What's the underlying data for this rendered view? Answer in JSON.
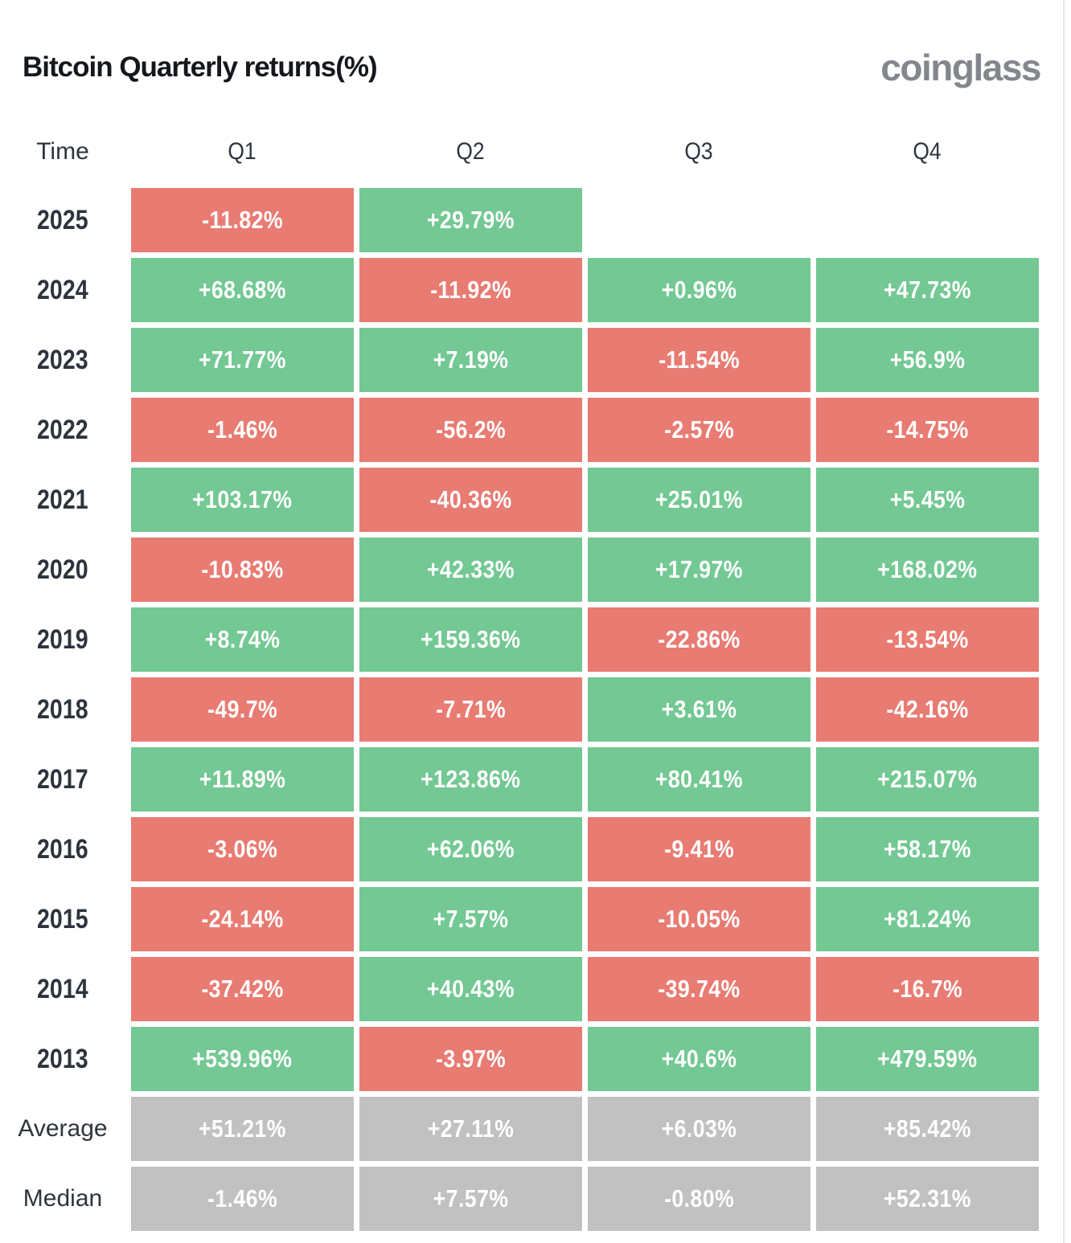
{
  "header": {
    "title": "Bitcoin Quarterly returns(%)",
    "logo": "coinglass"
  },
  "table": {
    "columns": [
      "Time",
      "Q1",
      "Q2",
      "Q3",
      "Q4"
    ],
    "rows": [
      {
        "label": "2025",
        "label_type": "year",
        "cells": [
          {
            "v": "-11.82%",
            "s": "neg"
          },
          {
            "v": "+29.79%",
            "s": "pos"
          },
          null,
          null
        ]
      },
      {
        "label": "2024",
        "label_type": "year",
        "cells": [
          {
            "v": "+68.68%",
            "s": "pos"
          },
          {
            "v": "-11.92%",
            "s": "neg"
          },
          {
            "v": "+0.96%",
            "s": "pos"
          },
          {
            "v": "+47.73%",
            "s": "pos"
          }
        ]
      },
      {
        "label": "2023",
        "label_type": "year",
        "cells": [
          {
            "v": "+71.77%",
            "s": "pos"
          },
          {
            "v": "+7.19%",
            "s": "pos"
          },
          {
            "v": "-11.54%",
            "s": "neg"
          },
          {
            "v": "+56.9%",
            "s": "pos"
          }
        ]
      },
      {
        "label": "2022",
        "label_type": "year",
        "cells": [
          {
            "v": "-1.46%",
            "s": "neg"
          },
          {
            "v": "-56.2%",
            "s": "neg"
          },
          {
            "v": "-2.57%",
            "s": "neg"
          },
          {
            "v": "-14.75%",
            "s": "neg"
          }
        ]
      },
      {
        "label": "2021",
        "label_type": "year",
        "cells": [
          {
            "v": "+103.17%",
            "s": "pos"
          },
          {
            "v": "-40.36%",
            "s": "neg"
          },
          {
            "v": "+25.01%",
            "s": "pos"
          },
          {
            "v": "+5.45%",
            "s": "pos"
          }
        ]
      },
      {
        "label": "2020",
        "label_type": "year",
        "cells": [
          {
            "v": "-10.83%",
            "s": "neg"
          },
          {
            "v": "+42.33%",
            "s": "pos"
          },
          {
            "v": "+17.97%",
            "s": "pos"
          },
          {
            "v": "+168.02%",
            "s": "pos"
          }
        ]
      },
      {
        "label": "2019",
        "label_type": "year",
        "cells": [
          {
            "v": "+8.74%",
            "s": "pos"
          },
          {
            "v": "+159.36%",
            "s": "pos"
          },
          {
            "v": "-22.86%",
            "s": "neg"
          },
          {
            "v": "-13.54%",
            "s": "neg"
          }
        ]
      },
      {
        "label": "2018",
        "label_type": "year",
        "cells": [
          {
            "v": "-49.7%",
            "s": "neg"
          },
          {
            "v": "-7.71%",
            "s": "neg"
          },
          {
            "v": "+3.61%",
            "s": "pos"
          },
          {
            "v": "-42.16%",
            "s": "neg"
          }
        ]
      },
      {
        "label": "2017",
        "label_type": "year",
        "cells": [
          {
            "v": "+11.89%",
            "s": "pos"
          },
          {
            "v": "+123.86%",
            "s": "pos"
          },
          {
            "v": "+80.41%",
            "s": "pos"
          },
          {
            "v": "+215.07%",
            "s": "pos"
          }
        ]
      },
      {
        "label": "2016",
        "label_type": "year",
        "cells": [
          {
            "v": "-3.06%",
            "s": "neg"
          },
          {
            "v": "+62.06%",
            "s": "pos"
          },
          {
            "v": "-9.41%",
            "s": "neg"
          },
          {
            "v": "+58.17%",
            "s": "pos"
          }
        ]
      },
      {
        "label": "2015",
        "label_type": "year",
        "cells": [
          {
            "v": "-24.14%",
            "s": "neg"
          },
          {
            "v": "+7.57%",
            "s": "pos"
          },
          {
            "v": "-10.05%",
            "s": "neg"
          },
          {
            "v": "+81.24%",
            "s": "pos"
          }
        ]
      },
      {
        "label": "2014",
        "label_type": "year",
        "cells": [
          {
            "v": "-37.42%",
            "s": "neg"
          },
          {
            "v": "+40.43%",
            "s": "pos"
          },
          {
            "v": "-39.74%",
            "s": "neg"
          },
          {
            "v": "-16.7%",
            "s": "neg"
          }
        ]
      },
      {
        "label": "2013",
        "label_type": "year",
        "cells": [
          {
            "v": "+539.96%",
            "s": "pos"
          },
          {
            "v": "-3.97%",
            "s": "neg"
          },
          {
            "v": "+40.6%",
            "s": "pos"
          },
          {
            "v": "+479.59%",
            "s": "pos"
          }
        ]
      },
      {
        "label": "Average",
        "label_type": "summary",
        "cells": [
          {
            "v": "+51.21%",
            "s": "avg"
          },
          {
            "v": "+27.11%",
            "s": "avg"
          },
          {
            "v": "+6.03%",
            "s": "avg"
          },
          {
            "v": "+85.42%",
            "s": "avg"
          }
        ]
      },
      {
        "label": "Median",
        "label_type": "summary",
        "cells": [
          {
            "v": "-1.46%",
            "s": "avg"
          },
          {
            "v": "+7.57%",
            "s": "avg"
          },
          {
            "v": "-0.80%",
            "s": "avg"
          },
          {
            "v": "+52.31%",
            "s": "avg"
          }
        ]
      }
    ]
  },
  "colors": {
    "positive": "#73c893",
    "negative": "#e87b72",
    "summary": "#c1c1c1",
    "label_text": "#2e343d",
    "cell_text": "#ffffff",
    "title_text": "#14171c",
    "logo_text": "#83878c"
  },
  "chart_data": {
    "type": "table",
    "title": "Bitcoin Quarterly returns(%)",
    "columns": [
      "Time",
      "Q1",
      "Q2",
      "Q3",
      "Q4"
    ],
    "unit": "percent",
    "color_coding": {
      "positive": "green",
      "negative": "red",
      "average_median": "gray"
    },
    "rows": [
      {
        "time": "2025",
        "values": [
          -11.82,
          29.79,
          null,
          null
        ]
      },
      {
        "time": "2024",
        "values": [
          68.68,
          -11.92,
          0.96,
          47.73
        ]
      },
      {
        "time": "2023",
        "values": [
          71.77,
          7.19,
          -11.54,
          56.9
        ]
      },
      {
        "time": "2022",
        "values": [
          -1.46,
          -56.2,
          -2.57,
          -14.75
        ]
      },
      {
        "time": "2021",
        "values": [
          103.17,
          -40.36,
          25.01,
          5.45
        ]
      },
      {
        "time": "2020",
        "values": [
          -10.83,
          42.33,
          17.97,
          168.02
        ]
      },
      {
        "time": "2019",
        "values": [
          8.74,
          159.36,
          -22.86,
          -13.54
        ]
      },
      {
        "time": "2018",
        "values": [
          -49.7,
          -7.71,
          3.61,
          -42.16
        ]
      },
      {
        "time": "2017",
        "values": [
          11.89,
          123.86,
          80.41,
          215.07
        ]
      },
      {
        "time": "2016",
        "values": [
          -3.06,
          62.06,
          -9.41,
          58.17
        ]
      },
      {
        "time": "2015",
        "values": [
          -24.14,
          7.57,
          -10.05,
          81.24
        ]
      },
      {
        "time": "2014",
        "values": [
          -37.42,
          40.43,
          -39.74,
          -16.7
        ]
      },
      {
        "time": "2013",
        "values": [
          539.96,
          -3.97,
          40.6,
          479.59
        ]
      },
      {
        "time": "Average",
        "values": [
          51.21,
          27.11,
          6.03,
          85.42
        ]
      },
      {
        "time": "Median",
        "values": [
          -1.46,
          7.57,
          -0.8,
          52.31
        ]
      }
    ]
  }
}
